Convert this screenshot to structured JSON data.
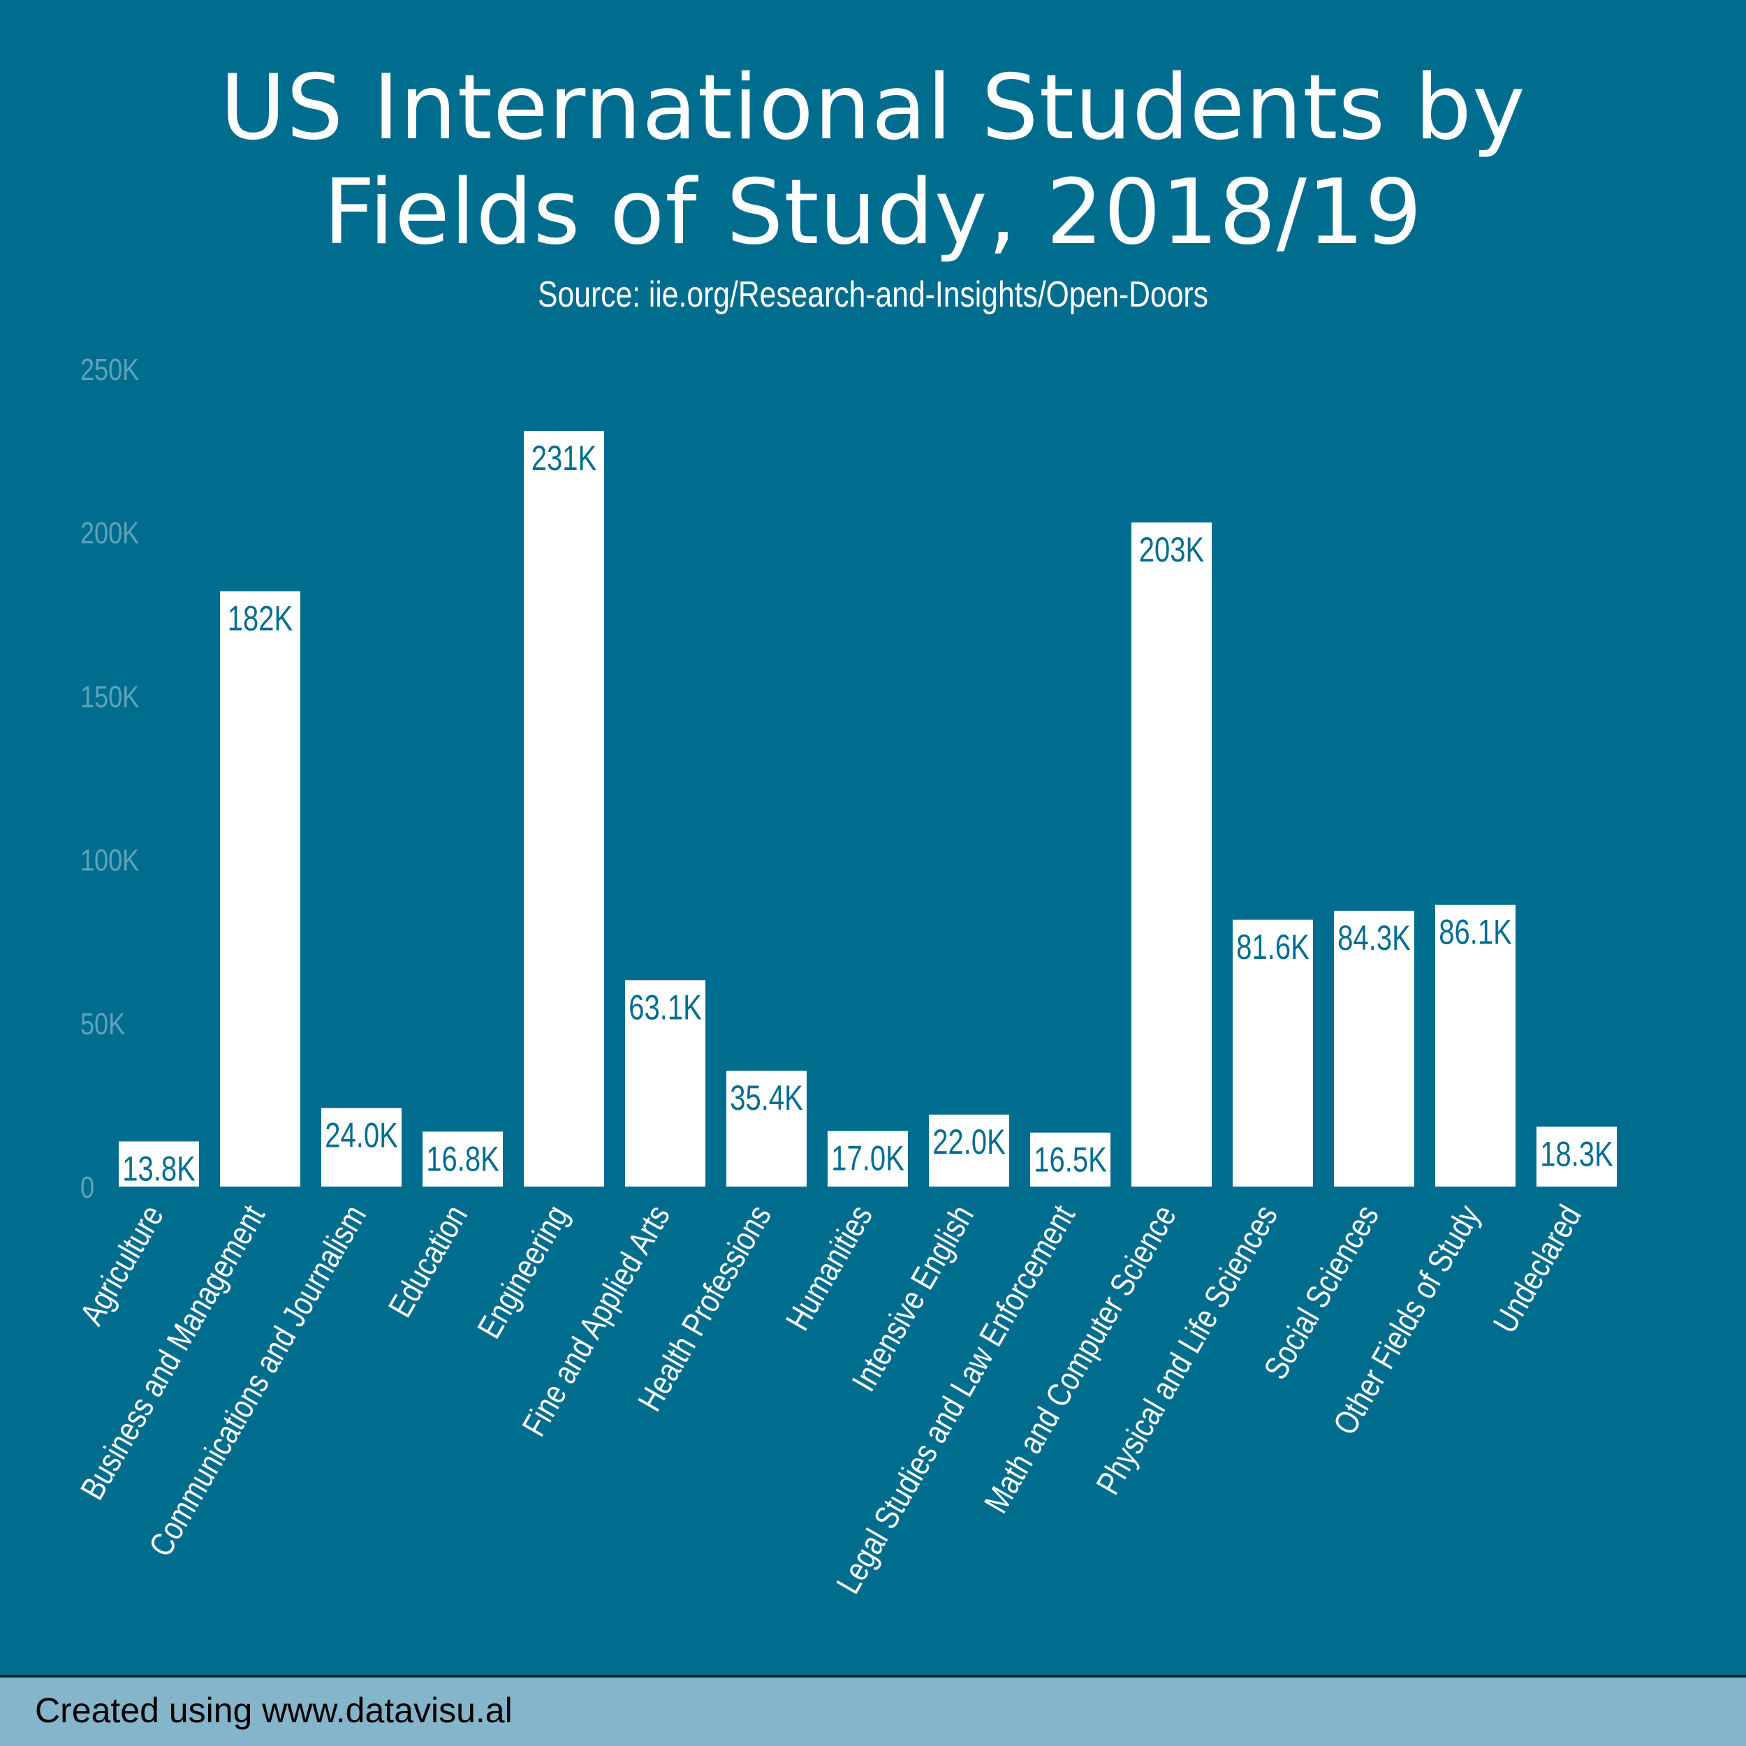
{
  "chart_data": {
    "type": "bar",
    "title": "US International Students by Fields of Study, 2018/19",
    "title_lines": [
      "US International Students by",
      "Fields of Study, 2018/19"
    ],
    "subtitle": "Source: iie.org/Research-and-Insights/Open-Doors",
    "xlabel": "",
    "ylabel": "",
    "ylim": [
      0,
      250000
    ],
    "y_ticks": [
      0,
      50000,
      100000,
      150000,
      200000,
      250000
    ],
    "y_tick_labels": [
      "0",
      "50K",
      "100K",
      "150K",
      "200K",
      "250K"
    ],
    "grid": false,
    "categories": [
      "Agriculture",
      "Business and Management",
      "Communications and Journalism",
      "Education",
      "Engineering",
      "Fine and Applied Arts",
      "Health Professions",
      "Humanities",
      "Intensive English",
      "Legal Studies and Law Enforcement",
      "Math and Computer Science",
      "Physical and Life Sciences",
      "Social Sciences",
      "Other Fields of Study",
      "Undeclared"
    ],
    "values": [
      13800,
      182000,
      24000,
      16800,
      231000,
      63100,
      35400,
      17000,
      22000,
      16500,
      203000,
      81600,
      84300,
      86100,
      18300
    ],
    "data_labels": [
      "13.8K",
      "182K",
      "24.0K",
      "16.8K",
      "231K",
      "63.1K",
      "35.4K",
      "17.0K",
      "22.0K",
      "16.5K",
      "203K",
      "81.6K",
      "84.3K",
      "86.1K",
      "18.3K"
    ],
    "colors": {
      "background": "#006d8f",
      "bar": "#ffffff",
      "data_label": "#006d8f",
      "axis_tick": "#5fa3bd",
      "category_label": "#ffffff"
    }
  },
  "footer": {
    "text": "Created using www.datavisu.al"
  }
}
